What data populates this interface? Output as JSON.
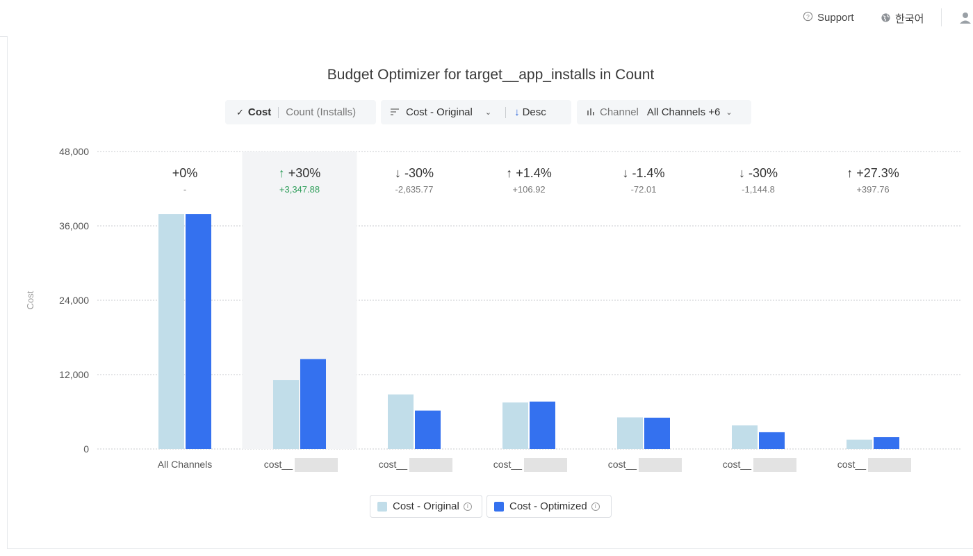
{
  "header": {
    "support_label": "Support",
    "language_label": "한국어"
  },
  "chart_controls": {
    "metric_active": "Cost",
    "metric_inactive": "Count (Installs)",
    "sort_label": "Cost - Original",
    "order_label": "Desc",
    "channel_label": "Channel",
    "channel_value": "All Channels +6"
  },
  "chart_data": {
    "type": "bar",
    "title": "Budget Optimizer for target__app_installs in Count",
    "ylabel": "Cost",
    "xlabel": "",
    "ylim": [
      0,
      48000
    ],
    "yticks": [
      0,
      12000,
      24000,
      36000,
      48000
    ],
    "ytick_labels": [
      "0",
      "12,000",
      "24,000",
      "36,000",
      "48,000"
    ],
    "categories": [
      "All Channels",
      "cost__",
      "cost__",
      "cost__",
      "cost__",
      "cost__",
      "cost__"
    ],
    "highlighted_index": 1,
    "series": [
      {
        "name": "Cost - Original",
        "color": "#c1dde9",
        "values": [
          37900,
          11100,
          8800,
          7500,
          5100,
          3800,
          1500
        ]
      },
      {
        "name": "Cost - Optimized",
        "color": "#3471ef",
        "values": [
          37900,
          14500,
          6200,
          7650,
          5050,
          2700,
          1900
        ]
      }
    ],
    "annotations": [
      {
        "pct": "+0%",
        "delta": "-",
        "dir": "none"
      },
      {
        "pct": "+30%",
        "delta": "+3,347.88",
        "dir": "up"
      },
      {
        "pct": "-30%",
        "delta": "-2,635.77",
        "dir": "down"
      },
      {
        "pct": "+1.4%",
        "delta": "+106.92",
        "dir": "up"
      },
      {
        "pct": "-1.4%",
        "delta": "-72.01",
        "dir": "down"
      },
      {
        "pct": "-30%",
        "delta": "-1,144.8",
        "dir": "down"
      },
      {
        "pct": "+27.3%",
        "delta": "+397.76",
        "dir": "up"
      }
    ]
  },
  "legend": {
    "original_label": "Cost - Original",
    "optimized_label": "Cost - Optimized"
  },
  "colors": {
    "original": "#c1dde9",
    "optimized": "#3471ef",
    "positive": "#2f9e5a",
    "accent": "#2a64d9"
  }
}
